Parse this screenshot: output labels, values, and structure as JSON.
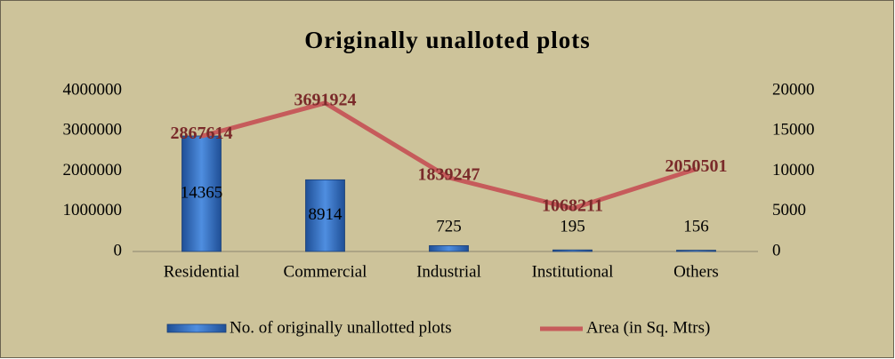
{
  "chart_data": {
    "type": "bar-line",
    "title": "Originally unalloted plots",
    "categories": [
      "Residential",
      "Commercial",
      "Industrial",
      "Institutional",
      "Others"
    ],
    "series": [
      {
        "name": "No. of originally unallotted plots",
        "type": "bar",
        "axis": "y2",
        "color": "#2f6cbf",
        "values": [
          14365,
          8914,
          725,
          195,
          156
        ]
      },
      {
        "name": "Area (in Sq. Mtrs)",
        "type": "line",
        "axis": "y",
        "color": "#c65b5b",
        "values": [
          2867614,
          3691924,
          1839247,
          1068211,
          2050501
        ]
      }
    ],
    "ylim": [
      0,
      4000000
    ],
    "yticks": [
      0,
      1000000,
      2000000,
      3000000,
      4000000
    ],
    "y2lim": [
      0,
      20000
    ],
    "y2ticks": [
      0,
      5000,
      10000,
      15000,
      20000
    ],
    "legend": "bottom"
  }
}
